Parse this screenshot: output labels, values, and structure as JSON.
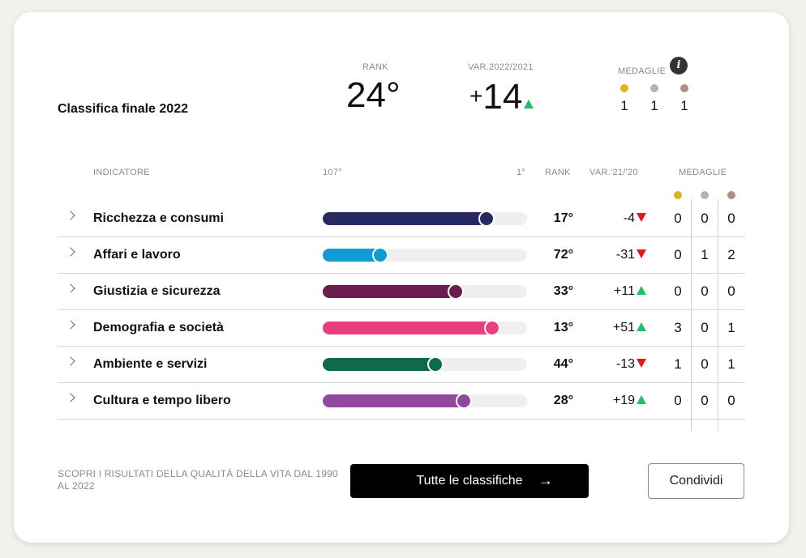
{
  "summary": {
    "title": "Classifica finale 2022",
    "rank_label": "RANK",
    "rank_value": "24°",
    "var_label": "VAR.2022/2021",
    "var_sign": "+",
    "var_value": "14",
    "medals_label": "MEDAGLIE",
    "info_icon": "i",
    "medals": [
      {
        "color": "#e0b31e",
        "count": "1"
      },
      {
        "color": "#b3b3b3",
        "count": "1"
      },
      {
        "color": "#b48a86",
        "count": "1"
      }
    ]
  },
  "table": {
    "headers": {
      "indicator": "INDICATORE",
      "scale_min": "107°",
      "scale_max": "1°",
      "rank": "RANK",
      "var": "VAR.'21/'20",
      "medals": "MEDAGLIE"
    },
    "medal_colors": [
      "#e0b31e",
      "#b3b3b3",
      "#b48a86"
    ],
    "rows": [
      {
        "name": "Ricchezza e consumi",
        "rank": "17°",
        "progress": 0.8,
        "color": "#272a5e",
        "var": "-4",
        "dir": "down",
        "gold": "0",
        "silver": "0",
        "bronze": "0"
      },
      {
        "name": "Affari e lavoro",
        "rank": "72°",
        "progress": 0.28,
        "color": "#0f9bd7",
        "var": "-31",
        "dir": "down",
        "gold": "0",
        "silver": "1",
        "bronze": "2"
      },
      {
        "name": "Giustizia e sicurezza",
        "rank": "33°",
        "progress": 0.65,
        "color": "#6c1c4e",
        "var": "+11",
        "dir": "up",
        "gold": "0",
        "silver": "0",
        "bronze": "0"
      },
      {
        "name": "Demografia e società",
        "rank": "13°",
        "progress": 0.83,
        "color": "#ea3f7d",
        "var": "+51",
        "dir": "up",
        "gold": "3",
        "silver": "0",
        "bronze": "1"
      },
      {
        "name": "Ambiente e servizi",
        "rank": "44°",
        "progress": 0.55,
        "color": "#0f6b47",
        "var": "-13",
        "dir": "down",
        "gold": "1",
        "silver": "0",
        "bronze": "1"
      },
      {
        "name": "Cultura e tempo libero",
        "rank": "28°",
        "progress": 0.69,
        "color": "#92479e",
        "var": "+19",
        "dir": "up",
        "gold": "0",
        "silver": "0",
        "bronze": "0"
      }
    ]
  },
  "footer": {
    "note": "SCOPRI I RISULTATI DELLA QUALITÀ DELLA VITA DAL 1990 AL 2022",
    "all_button": "Tutte le classifiche",
    "arrow": "→",
    "share_button": "Condividi"
  }
}
